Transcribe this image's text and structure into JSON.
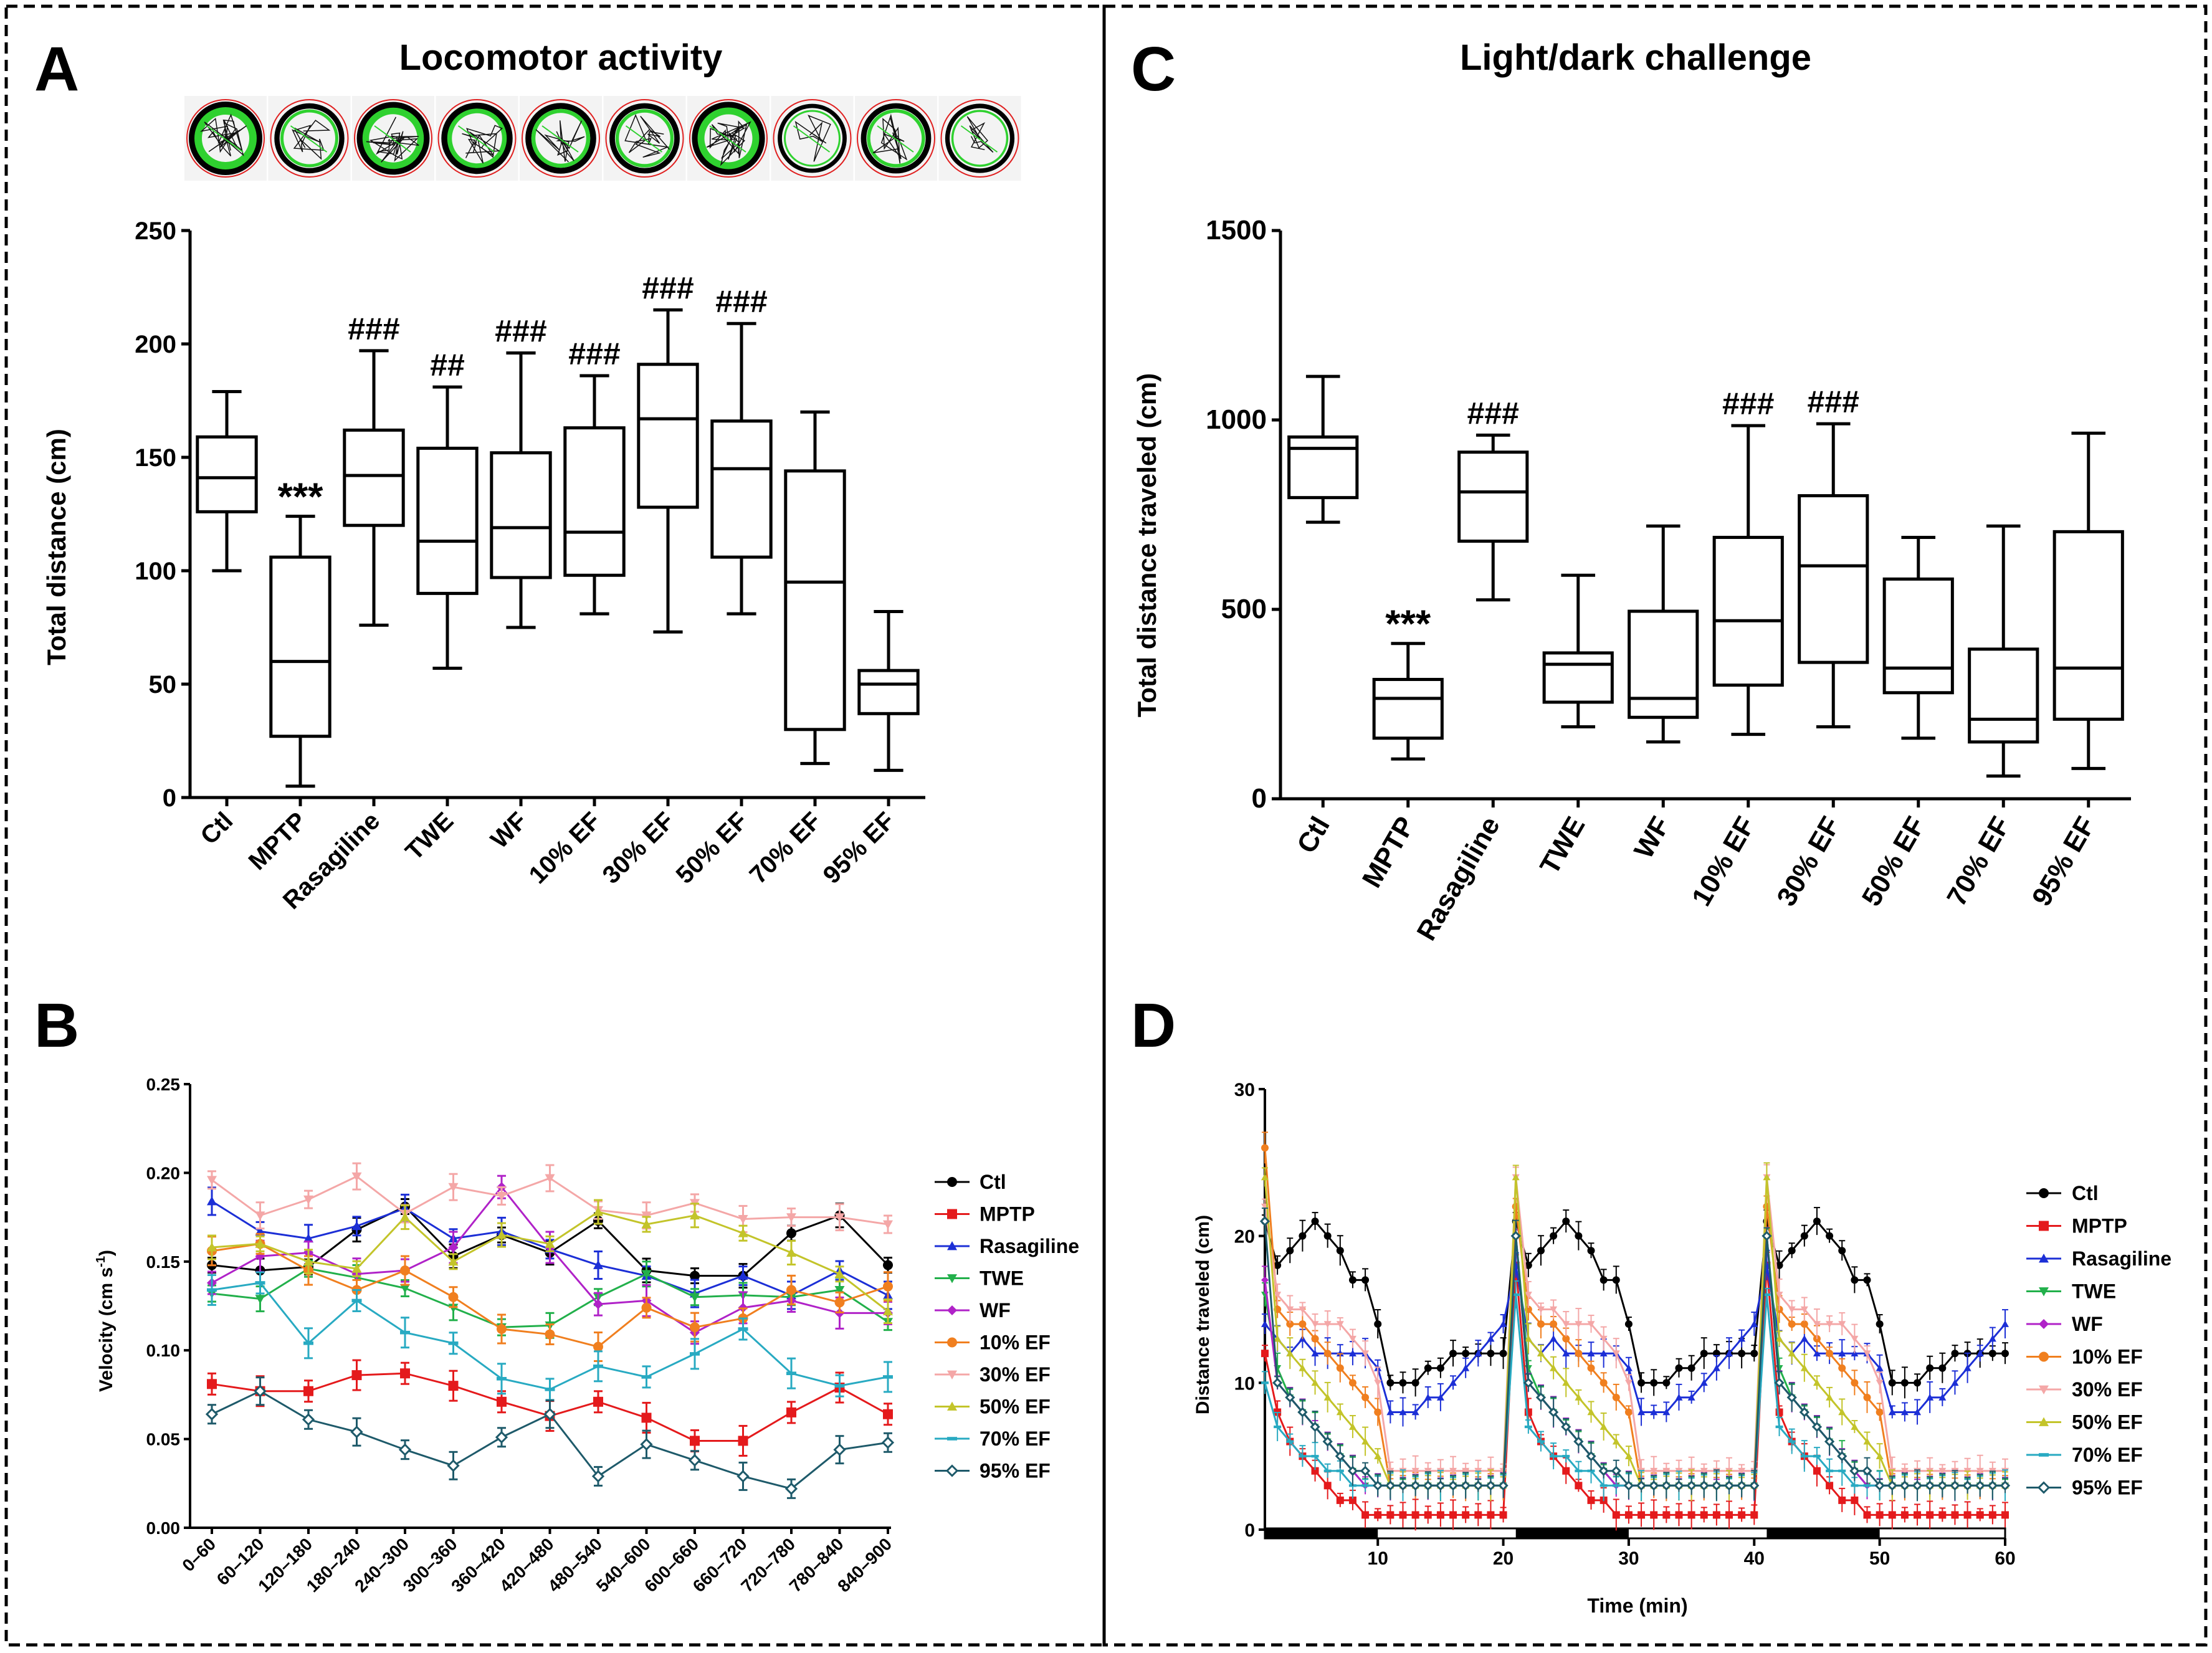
{
  "figure": {
    "panel_labels": [
      "A",
      "B",
      "C",
      "D"
    ],
    "legend_groups": [
      "Ctl",
      "MPTP",
      "Rasagiline",
      "TWE",
      "WF",
      "10% EF",
      "30% EF",
      "50% EF",
      "70% EF",
      "95% EF"
    ],
    "colors": {
      "Ctl": "#000000",
      "MPTP": "#e41a1c",
      "Rasagiline": "#1c2fd6",
      "TWE": "#22b04b",
      "WF": "#b022c8",
      "10% EF": "#f07f1f",
      "30% EF": "#f4a7a7",
      "50% EF": "#c3c42a",
      "70% EF": "#28aac2",
      "95% EF": "#1e5a6a"
    }
  },
  "chart_data": [
    {
      "panel": "A",
      "type": "boxplot",
      "title": "Locomotor activity",
      "ylabel": "Total distance (cm)",
      "ylim": [
        0,
        250
      ],
      "yticks": [
        0,
        50,
        100,
        150,
        200,
        250
      ],
      "categories": [
        "Ctl",
        "MPTP",
        "Rasagiline",
        "TWE",
        "WF",
        "10% EF",
        "30% EF",
        "50% EF",
        "70% EF",
        "95% EF"
      ],
      "boxes": [
        {
          "min": 100,
          "q1": 126,
          "median": 141,
          "q3": 159,
          "max": 179
        },
        {
          "min": 5,
          "q1": 27,
          "median": 60,
          "q3": 106,
          "max": 124
        },
        {
          "min": 76,
          "q1": 120,
          "median": 142,
          "q3": 162,
          "max": 197
        },
        {
          "min": 57,
          "q1": 90,
          "median": 113,
          "q3": 154,
          "max": 181
        },
        {
          "min": 75,
          "q1": 97,
          "median": 119,
          "q3": 152,
          "max": 196
        },
        {
          "min": 81,
          "q1": 98,
          "median": 117,
          "q3": 163,
          "max": 186
        },
        {
          "min": 73,
          "q1": 128,
          "median": 167,
          "q3": 191,
          "max": 215
        },
        {
          "min": 81,
          "q1": 106,
          "median": 145,
          "q3": 166,
          "max": 209
        },
        {
          "min": 15,
          "q1": 30,
          "median": 95,
          "q3": 144,
          "max": 170
        },
        {
          "min": 12,
          "q1": 37,
          "median": 50,
          "q3": 56,
          "max": 82
        }
      ],
      "annotations": [
        "",
        "***",
        "###",
        "##",
        "###",
        "###",
        "###",
        "###",
        "",
        ""
      ],
      "thumbnails_count": 10
    },
    {
      "panel": "B",
      "type": "line",
      "ylabel": "Velocity (cm s",
      "ylabel_sup": "-1",
      "ylabel_end": ")",
      "ylim": [
        0,
        0.25
      ],
      "yticks": [
        "0.00",
        "0.05",
        "0.10",
        "0.15",
        "0.20",
        "0.25"
      ],
      "categories": [
        "0–60",
        "60–120",
        "120–180",
        "180–240",
        "240–300",
        "300–360",
        "360–420",
        "420–480",
        "480–540",
        "540–600",
        "600–660",
        "660–720",
        "720–780",
        "780–840",
        "840–900"
      ],
      "series": [
        {
          "name": "Ctl",
          "values": [
            0.148,
            0.145,
            0.147,
            0.168,
            0.181,
            0.153,
            0.165,
            0.155,
            0.173,
            0.145,
            0.142,
            0.142,
            0.166,
            0.176,
            0.148
          ]
        },
        {
          "name": "MPTP",
          "values": [
            0.081,
            0.077,
            0.077,
            0.086,
            0.087,
            0.08,
            0.071,
            0.063,
            0.071,
            0.062,
            0.049,
            0.049,
            0.065,
            0.079,
            0.064
          ]
        },
        {
          "name": "Rasagiline",
          "values": [
            0.184,
            0.167,
            0.163,
            0.17,
            0.18,
            0.163,
            0.167,
            0.157,
            0.148,
            0.142,
            0.132,
            0.142,
            0.131,
            0.145,
            0.131
          ]
        },
        {
          "name": "TWE",
          "values": [
            0.132,
            0.129,
            0.146,
            0.141,
            0.135,
            0.124,
            0.113,
            0.114,
            0.13,
            0.143,
            0.13,
            0.131,
            0.13,
            0.134,
            0.116
          ]
        },
        {
          "name": "WF",
          "values": [
            0.138,
            0.153,
            0.155,
            0.143,
            0.145,
            0.158,
            0.192,
            0.158,
            0.126,
            0.128,
            0.11,
            0.124,
            0.128,
            0.121,
            0.121
          ]
        },
        {
          "name": "10% EF",
          "values": [
            0.156,
            0.16,
            0.145,
            0.134,
            0.145,
            0.13,
            0.112,
            0.109,
            0.102,
            0.124,
            0.113,
            0.118,
            0.134,
            0.127,
            0.136
          ]
        },
        {
          "name": "30% EF",
          "values": [
            0.196,
            0.176,
            0.185,
            0.198,
            0.177,
            0.192,
            0.187,
            0.197,
            0.179,
            0.176,
            0.183,
            0.174,
            0.175,
            0.175,
            0.171
          ]
        },
        {
          "name": "50% EF",
          "values": [
            0.158,
            0.16,
            0.15,
            0.146,
            0.175,
            0.15,
            0.165,
            0.16,
            0.178,
            0.171,
            0.176,
            0.166,
            0.155,
            0.143,
            0.122
          ]
        },
        {
          "name": "70% EF",
          "values": [
            0.134,
            0.138,
            0.104,
            0.128,
            0.11,
            0.104,
            0.084,
            0.078,
            0.091,
            0.085,
            0.098,
            0.112,
            0.087,
            0.08,
            0.085
          ]
        },
        {
          "name": "95% EF",
          "values": [
            0.064,
            0.077,
            0.061,
            0.054,
            0.044,
            0.035,
            0.051,
            0.064,
            0.029,
            0.047,
            0.038,
            0.029,
            0.022,
            0.044,
            0.048
          ]
        }
      ]
    },
    {
      "panel": "C",
      "type": "boxplot",
      "title": "Light/dark challenge",
      "ylabel": "Total distance traveled (cm)",
      "ylim": [
        0,
        1500
      ],
      "yticks": [
        0,
        500,
        1000,
        1500
      ],
      "categories": [
        "Ctl",
        "MPTP",
        "Rasagiline",
        "TWE",
        "WF",
        "10% EF",
        "30% EF",
        "50% EF",
        "70% EF",
        "95% EF"
      ],
      "boxes": [
        {
          "min": 730,
          "q1": 795,
          "median": 925,
          "q3": 955,
          "max": 1115
        },
        {
          "min": 105,
          "q1": 160,
          "median": 265,
          "q3": 315,
          "max": 410
        },
        {
          "min": 525,
          "q1": 680,
          "median": 810,
          "q3": 915,
          "max": 960
        },
        {
          "min": 190,
          "q1": 255,
          "median": 355,
          "q3": 385,
          "max": 590
        },
        {
          "min": 150,
          "q1": 215,
          "median": 265,
          "q3": 495,
          "max": 720
        },
        {
          "min": 170,
          "q1": 300,
          "median": 470,
          "q3": 690,
          "max": 985
        },
        {
          "min": 190,
          "q1": 360,
          "median": 615,
          "q3": 800,
          "max": 990
        },
        {
          "min": 160,
          "q1": 280,
          "median": 345,
          "q3": 580,
          "max": 690
        },
        {
          "min": 60,
          "q1": 150,
          "median": 210,
          "q3": 395,
          "max": 720
        },
        {
          "min": 80,
          "q1": 210,
          "median": 345,
          "q3": 705,
          "max": 965
        }
      ],
      "annotations": [
        "",
        "***",
        "###",
        "",
        "",
        "###",
        "###",
        "",
        "",
        ""
      ]
    },
    {
      "panel": "D",
      "type": "line",
      "xlabel": "Time (min)",
      "ylabel": "Distance traveled (cm)",
      "xlim": [
        1,
        60
      ],
      "ylim": [
        0,
        30
      ],
      "xticks": [
        10,
        20,
        30,
        40,
        50,
        60
      ],
      "yticks": [
        0,
        10,
        20,
        30
      ],
      "dark_periods": [
        [
          1,
          10
        ],
        [
          21,
          30
        ],
        [
          41,
          50
        ]
      ],
      "series": [
        {
          "name": "Ctl",
          "start": 21,
          "peak": 21,
          "phase": [
            18,
            18,
            19,
            20,
            21,
            20,
            19,
            17,
            17,
            14
          ],
          "baseline": [
            10,
            10,
            10,
            11,
            11,
            12,
            12,
            12,
            12,
            12
          ]
        },
        {
          "name": "MPTP",
          "start": 12,
          "peak": 18,
          "phase": [
            10,
            8,
            6,
            5,
            4,
            3,
            2,
            2,
            1,
            1
          ],
          "baseline": [
            1,
            1,
            1,
            1,
            1,
            1,
            1,
            1,
            1,
            1
          ]
        },
        {
          "name": "Rasagiline",
          "start": 14,
          "peak": 18,
          "phase": [
            13,
            13,
            12,
            13,
            12,
            12,
            12,
            12,
            12,
            11
          ],
          "baseline": [
            8,
            8,
            8,
            9,
            9,
            10,
            11,
            12,
            13,
            14
          ]
        },
        {
          "name": "TWE",
          "start": 16,
          "peak": 20,
          "phase": [
            12,
            11,
            9,
            8,
            7,
            6,
            5,
            4,
            3,
            3
          ],
          "baseline": [
            3,
            3,
            3,
            3,
            3,
            3,
            3,
            3,
            3,
            3
          ]
        },
        {
          "name": "WF",
          "start": 17,
          "peak": 20,
          "phase": [
            11,
            10,
            9,
            8,
            7,
            6,
            5,
            4,
            3,
            3
          ],
          "baseline": [
            3,
            3,
            3,
            3,
            3,
            3,
            3,
            3,
            3,
            3
          ]
        },
        {
          "name": "10% EF",
          "start": 26,
          "peak": 22,
          "phase": [
            16,
            15,
            14,
            14,
            13,
            12,
            11,
            10,
            9,
            8
          ],
          "baseline": [
            3,
            3,
            3,
            3,
            3,
            3,
            3,
            3,
            3,
            3
          ]
        },
        {
          "name": "30% EF",
          "start": 22,
          "peak": 24,
          "phase": [
            17,
            16,
            15,
            15,
            14,
            14,
            14,
            13,
            12,
            10
          ],
          "baseline": [
            4,
            4,
            4,
            4,
            4,
            4,
            4,
            4,
            4,
            4
          ]
        },
        {
          "name": "50% EF",
          "start": 24,
          "peak": 24,
          "phase": [
            14,
            13,
            12,
            11,
            10,
            9,
            8,
            7,
            6,
            5
          ],
          "baseline": [
            3,
            3,
            3,
            3,
            3,
            3,
            3,
            3,
            3,
            3
          ]
        },
        {
          "name": "70% EF",
          "start": 10,
          "peak": 16,
          "phase": [
            8,
            7,
            6,
            5,
            5,
            4,
            4,
            3,
            3,
            3
          ],
          "baseline": [
            3,
            3,
            3,
            3,
            3,
            3,
            3,
            3,
            3,
            3
          ]
        },
        {
          "name": "95% EF",
          "start": 21,
          "peak": 20,
          "phase": [
            11,
            10,
            9,
            8,
            7,
            6,
            5,
            4,
            4,
            3
          ],
          "baseline": [
            3,
            3,
            3,
            3,
            3,
            3,
            3,
            3,
            3,
            3
          ]
        }
      ]
    }
  ]
}
